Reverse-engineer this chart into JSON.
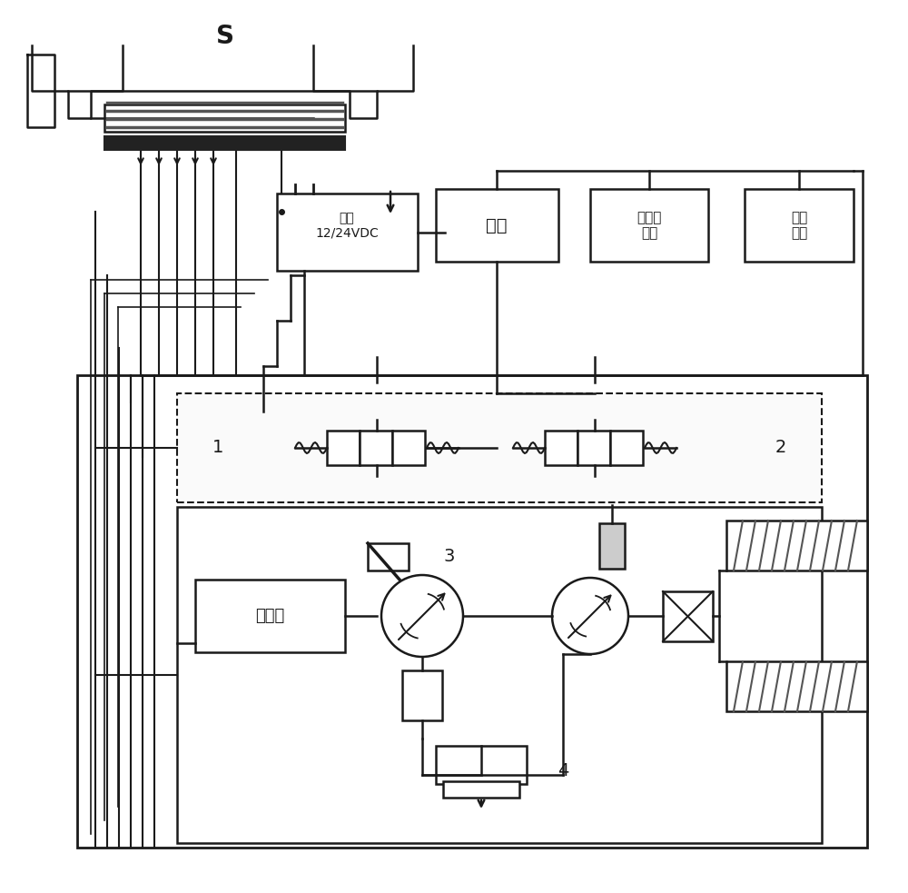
{
  "line_color": "#1a1a1a",
  "labels": {
    "battery": "电池\n12/24VDC",
    "switch": "开关",
    "pedal_sensor": "踏板传\n感器",
    "mode_switch": "模式\n开关",
    "engine": "发动机",
    "S": "S",
    "label1": "1",
    "label2": "2",
    "label3": "3",
    "label4": "4"
  },
  "figsize": [
    10.0,
    9.83
  ],
  "dpi": 100
}
